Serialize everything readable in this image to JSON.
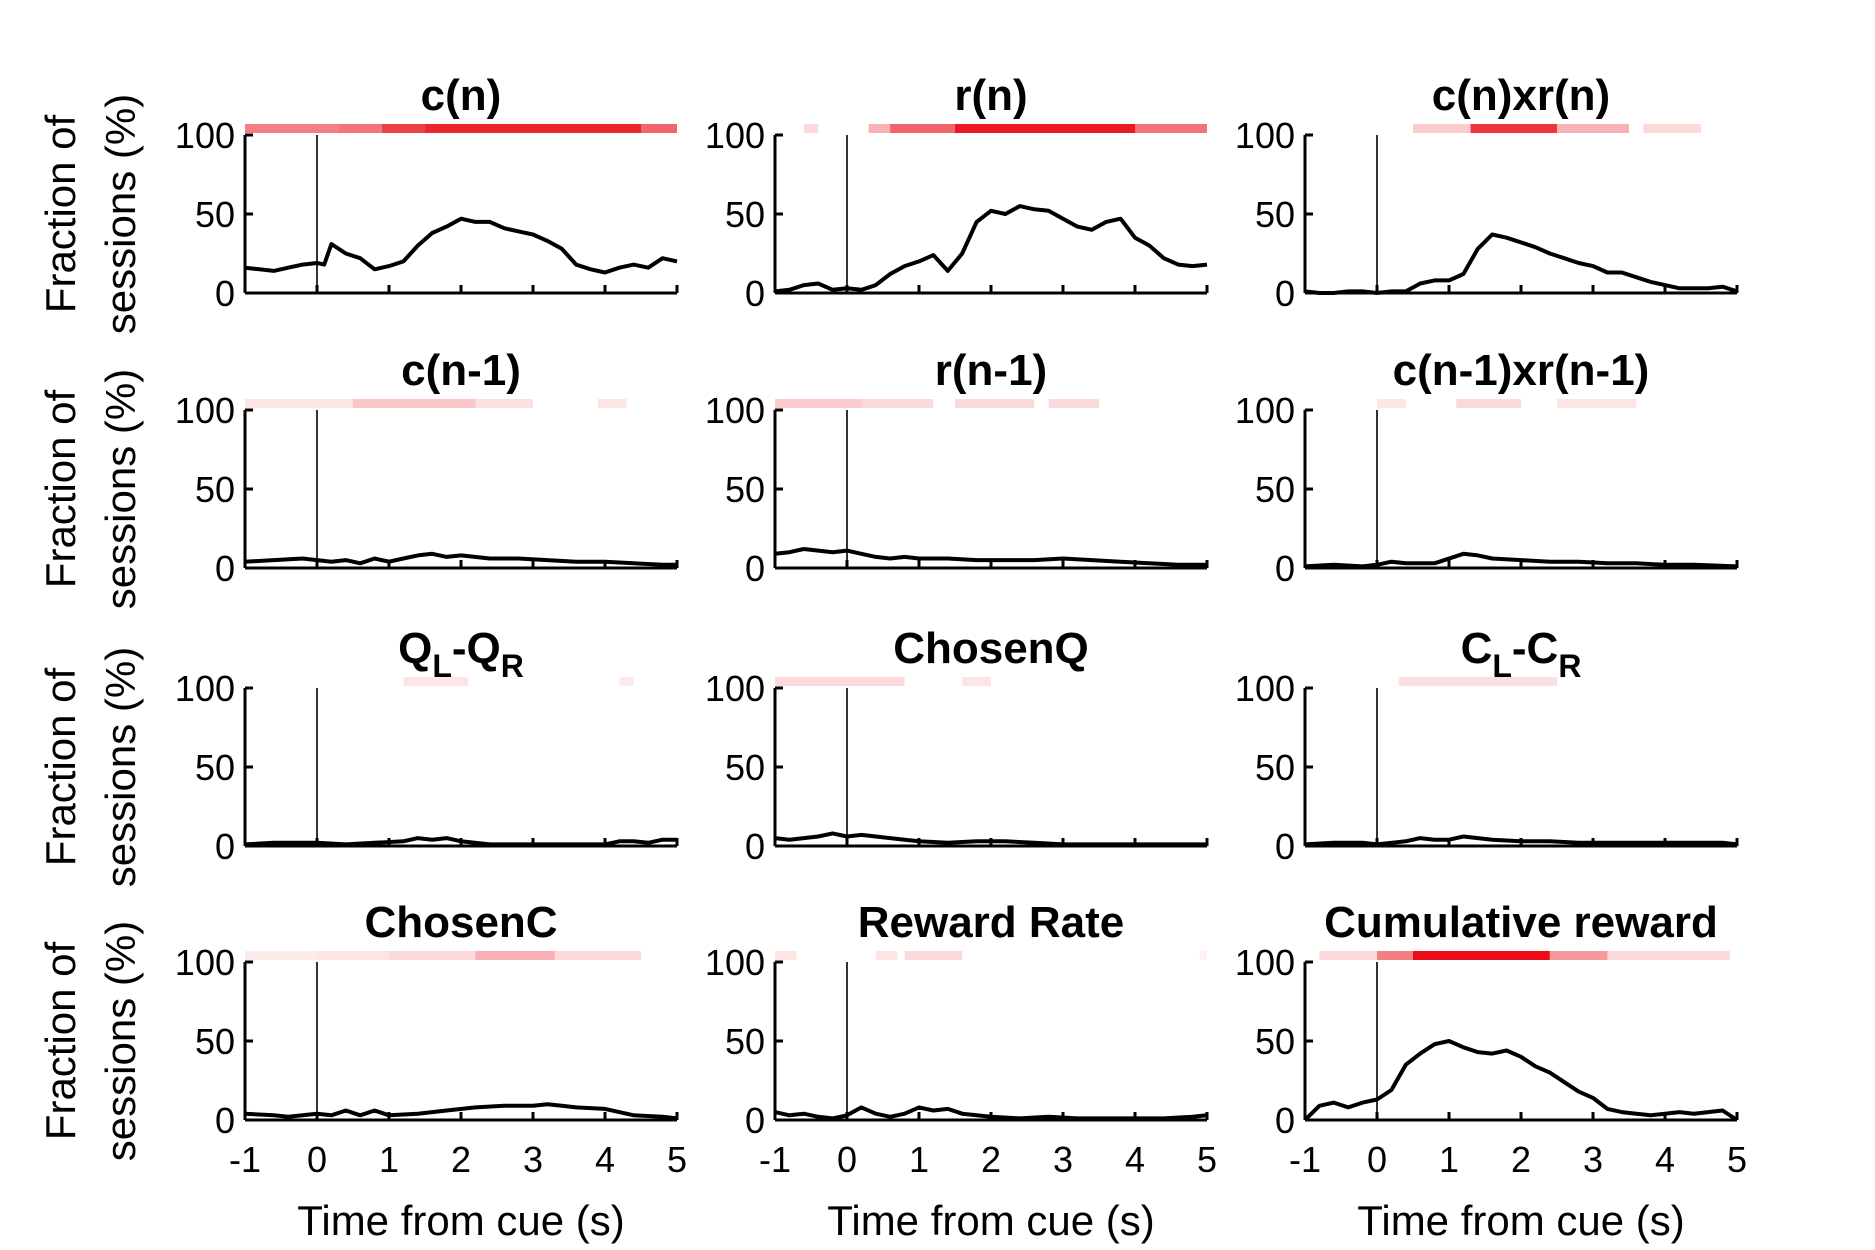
{
  "figure": {
    "ylabel_line1": "Fraction of",
    "ylabel_line2": "sessions (%)",
    "xlabel": "Time from cue (s)"
  },
  "chart_data": [
    {
      "type": "line",
      "title": "c(n)",
      "xlim": [
        -1,
        5
      ],
      "ylim": [
        0,
        100
      ],
      "xticks": [
        "-1",
        "0",
        "1",
        "2",
        "3",
        "4",
        "5"
      ],
      "yticks": [
        "0",
        "50",
        "100"
      ],
      "x": [
        -1,
        -0.8,
        -0.6,
        -0.4,
        -0.2,
        0,
        0.1,
        0.2,
        0.4,
        0.6,
        0.8,
        1,
        1.2,
        1.4,
        1.6,
        1.8,
        2,
        2.2,
        2.4,
        2.6,
        2.8,
        3,
        3.2,
        3.4,
        3.6,
        3.8,
        4,
        4.2,
        4.4,
        4.6,
        4.8,
        5
      ],
      "y": [
        16,
        15,
        14,
        16,
        18,
        19,
        18,
        31,
        25,
        22,
        15,
        17,
        20,
        30,
        38,
        42,
        47,
        45,
        45,
        41,
        39,
        37,
        33,
        28,
        18,
        15,
        13,
        16,
        18,
        16,
        22,
        20
      ],
      "significance": [
        [
          -1,
          0.3,
          0.5
        ],
        [
          0.3,
          0.9,
          0.55
        ],
        [
          0.9,
          1.5,
          0.75
        ],
        [
          1.5,
          4.5,
          0.85
        ],
        [
          4.5,
          5,
          0.6
        ]
      ]
    },
    {
      "type": "line",
      "title": "r(n)",
      "xlim": [
        -1,
        5
      ],
      "ylim": [
        0,
        100
      ],
      "xticks": [
        "-1",
        "0",
        "1",
        "2",
        "3",
        "4",
        "5"
      ],
      "yticks": [
        "0",
        "50",
        "100"
      ],
      "x": [
        -1,
        -0.8,
        -0.6,
        -0.4,
        -0.2,
        0,
        0.2,
        0.4,
        0.6,
        0.8,
        1,
        1.2,
        1.4,
        1.6,
        1.8,
        2,
        2.2,
        2.4,
        2.6,
        2.8,
        3,
        3.2,
        3.4,
        3.6,
        3.8,
        4,
        4.2,
        4.4,
        4.6,
        4.8,
        5
      ],
      "y": [
        1,
        2,
        5,
        6,
        2,
        3,
        2,
        5,
        12,
        17,
        20,
        24,
        14,
        25,
        45,
        52,
        50,
        55,
        53,
        52,
        47,
        42,
        40,
        45,
        47,
        35,
        30,
        22,
        18,
        17,
        18
      ],
      "significance": [
        [
          -0.6,
          -0.4,
          0.15
        ],
        [
          0.3,
          0.6,
          0.3
        ],
        [
          0.6,
          1.5,
          0.6
        ],
        [
          1.5,
          4.0,
          0.9
        ],
        [
          4.0,
          5,
          0.55
        ]
      ]
    },
    {
      "type": "line",
      "title": "c(n)xr(n)",
      "xlim": [
        -1,
        5
      ],
      "ylim": [
        0,
        100
      ],
      "xticks": [
        "-1",
        "0",
        "1",
        "2",
        "3",
        "4",
        "5"
      ],
      "yticks": [
        "0",
        "50",
        "100"
      ],
      "x": [
        -1,
        -0.8,
        -0.6,
        -0.4,
        -0.2,
        0,
        0.2,
        0.4,
        0.6,
        0.8,
        1,
        1.2,
        1.4,
        1.6,
        1.8,
        2,
        2.2,
        2.4,
        2.6,
        2.8,
        3,
        3.2,
        3.4,
        3.6,
        3.8,
        4,
        4.2,
        4.4,
        4.6,
        4.8,
        5
      ],
      "y": [
        1,
        0,
        0,
        1,
        1,
        0,
        1,
        1,
        6,
        8,
        8,
        12,
        28,
        37,
        35,
        32,
        29,
        25,
        22,
        19,
        17,
        13,
        13,
        10,
        7,
        5,
        3,
        3,
        3,
        4,
        1
      ],
      "significance": [
        [
          0.5,
          1.3,
          0.2
        ],
        [
          1.3,
          2.5,
          0.8
        ],
        [
          2.5,
          3.5,
          0.3
        ],
        [
          3.7,
          4.5,
          0.15
        ]
      ]
    },
    {
      "type": "line",
      "title": "c(n-1)",
      "xlim": [
        -1,
        5
      ],
      "ylim": [
        0,
        100
      ],
      "xticks": [
        "-1",
        "0",
        "1",
        "2",
        "3",
        "4",
        "5"
      ],
      "yticks": [
        "0",
        "50",
        "100"
      ],
      "x": [
        -1,
        -0.6,
        -0.2,
        0,
        0.2,
        0.4,
        0.6,
        0.8,
        1,
        1.2,
        1.4,
        1.6,
        1.8,
        2,
        2.4,
        2.8,
        3.2,
        3.6,
        4,
        4.4,
        4.8,
        5
      ],
      "y": [
        4,
        5,
        6,
        5,
        4,
        5,
        3,
        6,
        4,
        6,
        8,
        9,
        7,
        8,
        6,
        6,
        5,
        4,
        4,
        3,
        2,
        2
      ],
      "significance": [
        [
          -1,
          0.5,
          0.1
        ],
        [
          0.5,
          2.2,
          0.22
        ],
        [
          2.2,
          3,
          0.12
        ],
        [
          3.9,
          4.3,
          0.1
        ]
      ]
    },
    {
      "type": "line",
      "title": "r(n-1)",
      "xlim": [
        -1,
        5
      ],
      "ylim": [
        0,
        100
      ],
      "xticks": [
        "-1",
        "0",
        "1",
        "2",
        "3",
        "4",
        "5"
      ],
      "yticks": [
        "0",
        "50",
        "100"
      ],
      "x": [
        -1,
        -0.8,
        -0.6,
        -0.4,
        -0.2,
        0,
        0.2,
        0.4,
        0.6,
        0.8,
        1,
        1.4,
        1.8,
        2.2,
        2.6,
        3,
        3.4,
        3.8,
        4.2,
        4.6,
        5
      ],
      "y": [
        9,
        10,
        12,
        11,
        10,
        11,
        9,
        7,
        6,
        7,
        6,
        6,
        5,
        5,
        5,
        6,
        5,
        4,
        3,
        2,
        2
      ],
      "significance": [
        [
          -1,
          0.2,
          0.2
        ],
        [
          0.2,
          1.2,
          0.15
        ],
        [
          1.5,
          2.6,
          0.15
        ],
        [
          2.8,
          3.5,
          0.15
        ]
      ]
    },
    {
      "type": "line",
      "title": "c(n-1)xr(n-1)",
      "xlim": [
        -1,
        5
      ],
      "ylim": [
        0,
        100
      ],
      "xticks": [
        "-1",
        "0",
        "1",
        "2",
        "3",
        "4",
        "5"
      ],
      "yticks": [
        "0",
        "50",
        "100"
      ],
      "x": [
        -1,
        -0.6,
        -0.2,
        0,
        0.2,
        0.4,
        0.8,
        1.2,
        1.4,
        1.6,
        2,
        2.4,
        2.8,
        3.2,
        3.6,
        4,
        4.4,
        5
      ],
      "y": [
        1,
        2,
        1,
        2,
        4,
        3,
        3,
        9,
        8,
        6,
        5,
        4,
        4,
        3,
        3,
        2,
        2,
        1
      ],
      "significance": [
        [
          0,
          0.4,
          0.1
        ],
        [
          1.1,
          2,
          0.15
        ],
        [
          2.5,
          3.6,
          0.1
        ]
      ]
    },
    {
      "type": "line",
      "title": "QL-QR",
      "xlim": [
        -1,
        5
      ],
      "ylim": [
        0,
        100
      ],
      "xticks": [
        "-1",
        "0",
        "1",
        "2",
        "3",
        "4",
        "5"
      ],
      "yticks": [
        "0",
        "50",
        "100"
      ],
      "x": [
        -1,
        -0.6,
        -0.2,
        0,
        0.4,
        0.8,
        1.2,
        1.4,
        1.6,
        1.8,
        2,
        2.4,
        2.8,
        3.2,
        3.6,
        4,
        4.2,
        4.4,
        4.6,
        4.8,
        5
      ],
      "y": [
        1,
        2,
        2,
        2,
        1,
        2,
        3,
        5,
        4,
        5,
        3,
        1,
        1,
        1,
        1,
        1,
        3,
        3,
        2,
        4,
        4
      ],
      "significance": [
        [
          1.2,
          2.1,
          0.1
        ],
        [
          4.2,
          4.4,
          0.08
        ]
      ]
    },
    {
      "type": "line",
      "title": "ChosenQ",
      "xlim": [
        -1,
        5
      ],
      "ylim": [
        0,
        100
      ],
      "xticks": [
        "-1",
        "0",
        "1",
        "2",
        "3",
        "4",
        "5"
      ],
      "yticks": [
        "0",
        "50",
        "100"
      ],
      "x": [
        -1,
        -0.8,
        -0.6,
        -0.4,
        -0.2,
        0,
        0.2,
        0.4,
        0.6,
        0.8,
        1,
        1.4,
        1.8,
        2.2,
        2.6,
        3,
        3.4,
        3.8,
        4.2,
        4.6,
        5
      ],
      "y": [
        5,
        4,
        5,
        6,
        8,
        6,
        7,
        6,
        5,
        4,
        3,
        2,
        3,
        3,
        2,
        1,
        1,
        1,
        1,
        1,
        1
      ],
      "significance": [
        [
          -1,
          0.8,
          0.15
        ],
        [
          1.6,
          2,
          0.1
        ]
      ]
    },
    {
      "type": "line",
      "title": "CL-CR",
      "xlim": [
        -1,
        5
      ],
      "ylim": [
        0,
        100
      ],
      "xticks": [
        "-1",
        "0",
        "1",
        "2",
        "3",
        "4",
        "5"
      ],
      "yticks": [
        "0",
        "50",
        "100"
      ],
      "x": [
        -1,
        -0.6,
        -0.2,
        0,
        0.4,
        0.6,
        0.8,
        1,
        1.2,
        1.4,
        1.6,
        2,
        2.4,
        2.8,
        3.2,
        3.6,
        4,
        4.4,
        4.8,
        5
      ],
      "y": [
        1,
        2,
        2,
        1,
        3,
        5,
        4,
        4,
        6,
        5,
        4,
        3,
        3,
        2,
        2,
        2,
        2,
        2,
        2,
        1
      ],
      "significance": [
        [
          0.3,
          2.5,
          0.12
        ]
      ]
    },
    {
      "type": "line",
      "title": "ChosenC",
      "xlim": [
        -1,
        5
      ],
      "ylim": [
        0,
        100
      ],
      "xticks": [
        "-1",
        "0",
        "1",
        "2",
        "3",
        "4",
        "5"
      ],
      "yticks": [
        "0",
        "50",
        "100"
      ],
      "x": [
        -1,
        -0.6,
        -0.4,
        -0.2,
        0,
        0.2,
        0.4,
        0.6,
        0.8,
        1,
        1.4,
        1.8,
        2.2,
        2.6,
        3,
        3.2,
        3.4,
        3.6,
        4,
        4.4,
        4.8,
        5
      ],
      "y": [
        4,
        3,
        2,
        3,
        4,
        3,
        6,
        3,
        6,
        3,
        4,
        6,
        8,
        9,
        9,
        10,
        9,
        8,
        7,
        3,
        2,
        1
      ],
      "significance": [
        [
          -1,
          0,
          0.08
        ],
        [
          0,
          1,
          0.1
        ],
        [
          1,
          2.2,
          0.15
        ],
        [
          2.2,
          3.3,
          0.3
        ],
        [
          3.3,
          4.5,
          0.15
        ]
      ]
    },
    {
      "type": "line",
      "title": "Reward Rate",
      "xlim": [
        -1,
        5
      ],
      "ylim": [
        0,
        100
      ],
      "xticks": [
        "-1",
        "0",
        "1",
        "2",
        "3",
        "4",
        "5"
      ],
      "yticks": [
        "0",
        "50",
        "100"
      ],
      "x": [
        -1,
        -0.8,
        -0.6,
        -0.4,
        -0.2,
        0,
        0.2,
        0.4,
        0.6,
        0.8,
        1,
        1.2,
        1.4,
        1.6,
        1.8,
        2,
        2.4,
        2.8,
        3.2,
        3.6,
        4,
        4.4,
        4.8,
        5
      ],
      "y": [
        5,
        3,
        4,
        2,
        1,
        3,
        8,
        4,
        2,
        4,
        8,
        6,
        7,
        4,
        3,
        2,
        1,
        2,
        1,
        1,
        1,
        1,
        2,
        3
      ],
      "significance": [
        [
          -1,
          -0.7,
          0.1
        ],
        [
          0.4,
          0.7,
          0.1
        ],
        [
          0.8,
          1.6,
          0.15
        ],
        [
          4.9,
          5,
          0.05
        ]
      ]
    },
    {
      "type": "line",
      "title": "Cumulative reward",
      "xlim": [
        -1,
        5
      ],
      "ylim": [
        0,
        100
      ],
      "xticks": [
        "-1",
        "0",
        "1",
        "2",
        "3",
        "4",
        "5"
      ],
      "yticks": [
        "0",
        "50",
        "100"
      ],
      "x": [
        -1,
        -0.8,
        -0.6,
        -0.4,
        -0.2,
        0,
        0.2,
        0.4,
        0.6,
        0.8,
        1,
        1.2,
        1.4,
        1.6,
        1.8,
        2,
        2.2,
        2.4,
        2.6,
        2.8,
        3,
        3.2,
        3.4,
        3.6,
        3.8,
        4,
        4.2,
        4.4,
        4.6,
        4.8,
        5
      ],
      "y": [
        0,
        9,
        11,
        8,
        11,
        13,
        19,
        35,
        42,
        48,
        50,
        46,
        43,
        42,
        44,
        40,
        34,
        30,
        24,
        18,
        14,
        7,
        5,
        4,
        3,
        4,
        5,
        4,
        5,
        6,
        0
      ],
      "significance": [
        [
          -0.8,
          0,
          0.15
        ],
        [
          0,
          0.5,
          0.5
        ],
        [
          0.5,
          2.4,
          0.95
        ],
        [
          2.4,
          3.2,
          0.4
        ],
        [
          3.2,
          4.9,
          0.15
        ]
      ]
    }
  ]
}
